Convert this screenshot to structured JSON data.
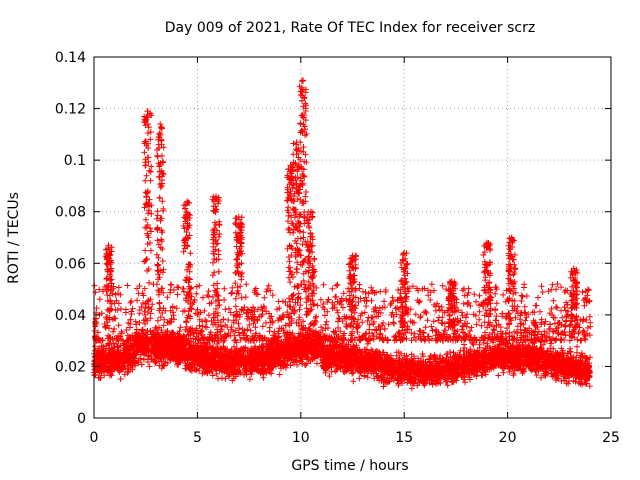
{
  "chart_data": {
    "type": "scatter",
    "title": "Day 009 of 2021, Rate Of TEC Index for receiver scrz",
    "xlabel": "GPS time / hours",
    "ylabel": "ROTI / TECUs",
    "xlim": [
      0,
      25
    ],
    "ylim": [
      0,
      0.14
    ],
    "xticks": [
      0,
      5,
      10,
      15,
      20,
      25
    ],
    "xtick_labels": [
      "0",
      "5",
      "10",
      "15",
      "20",
      "25"
    ],
    "yticks": [
      0,
      0.02,
      0.04,
      0.06,
      0.08,
      0.1,
      0.12,
      0.14
    ],
    "ytick_labels": [
      "0",
      "0.02",
      "0.04",
      "0.06",
      "0.08",
      "0.1",
      "0.12",
      "0.14"
    ],
    "grid": true,
    "marker": "+",
    "color": "#ff0000",
    "series": [
      {
        "name": "ROTI",
        "data_range_hours": [
          0,
          24
        ],
        "typical_range": [
          0.01,
          0.035
        ],
        "peaks": [
          {
            "x": 2.6,
            "y": 0.119
          },
          {
            "x": 3.2,
            "y": 0.114
          },
          {
            "x": 4.5,
            "y": 0.084
          },
          {
            "x": 5.9,
            "y": 0.086
          },
          {
            "x": 7.0,
            "y": 0.078
          },
          {
            "x": 9.5,
            "y": 0.098
          },
          {
            "x": 9.8,
            "y": 0.107
          },
          {
            "x": 10.1,
            "y": 0.131
          },
          {
            "x": 10.5,
            "y": 0.08
          },
          {
            "x": 0.7,
            "y": 0.067
          },
          {
            "x": 12.5,
            "y": 0.063
          },
          {
            "x": 15.0,
            "y": 0.064
          },
          {
            "x": 17.3,
            "y": 0.053
          },
          {
            "x": 19.0,
            "y": 0.068
          },
          {
            "x": 20.2,
            "y": 0.07
          },
          {
            "x": 23.2,
            "y": 0.058
          }
        ]
      }
    ]
  }
}
